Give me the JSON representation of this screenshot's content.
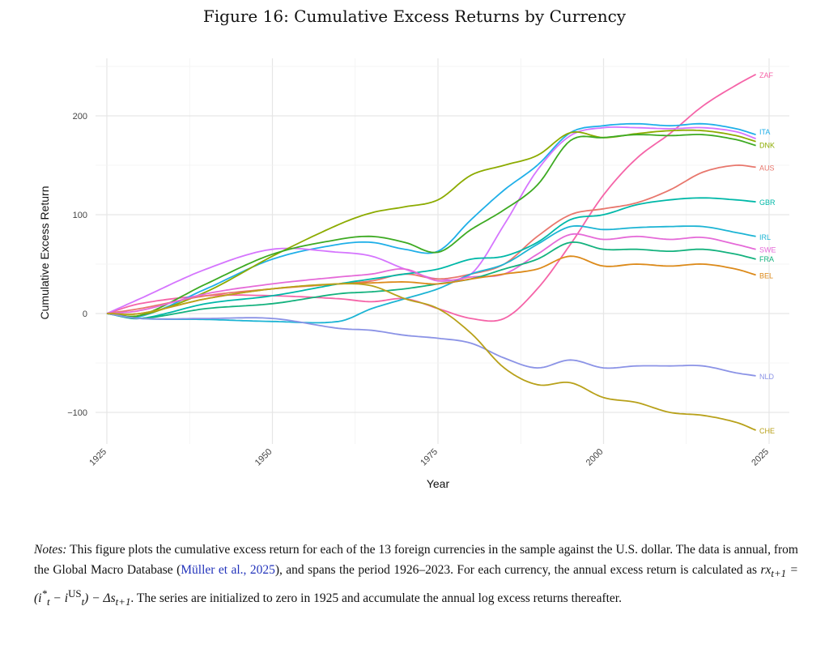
{
  "figure": {
    "title": "Figure 16: Cumulative Excess Returns by Currency"
  },
  "chart_data": {
    "type": "line",
    "xlabel": "Year",
    "ylabel": "Cumulative Excess Return",
    "xlim": [
      1925,
      2025
    ],
    "ylim": [
      -125,
      250
    ],
    "x_ticks": [
      "1925",
      "1950",
      "1975",
      "2000",
      "2025"
    ],
    "y_ticks": [
      "−100",
      "0",
      "100",
      "200"
    ],
    "grid": true,
    "legend": "direct labels at line ends (right)",
    "x": [
      1925,
      1930,
      1940,
      1950,
      1960,
      1965,
      1970,
      1975,
      1980,
      1985,
      1990,
      1995,
      2000,
      2005,
      2010,
      2015,
      2020,
      2023
    ],
    "series": [
      {
        "name": "ZAF",
        "color": "#F564A8",
        "values": [
          0,
          10,
          18,
          18,
          15,
          12,
          15,
          5,
          -5,
          -5,
          25,
          70,
          120,
          157,
          182,
          210,
          231,
          242
        ]
      },
      {
        "name": "ITA",
        "color": "#1FAFE8",
        "values": [
          0,
          -3,
          25,
          55,
          70,
          72,
          65,
          63,
          95,
          125,
          150,
          183,
          190,
          192,
          190,
          192,
          187,
          181
        ]
      },
      {
        "name": "",
        "color": "#D575FE",
        "values": [
          0,
          15,
          45,
          65,
          62,
          58,
          45,
          35,
          40,
          90,
          145,
          180,
          188,
          188,
          187,
          188,
          184,
          177
        ]
      },
      {
        "name": "DNK",
        "color": "#8CAB00",
        "values": [
          0,
          -2,
          22,
          58,
          90,
          102,
          108,
          115,
          140,
          150,
          160,
          183,
          178,
          182,
          185,
          185,
          180,
          174
        ]
      },
      {
        "name": "",
        "color": "#3DAA22",
        "values": [
          0,
          -2,
          30,
          60,
          75,
          78,
          72,
          62,
          85,
          105,
          130,
          175,
          178,
          181,
          180,
          181,
          176,
          170
        ]
      },
      {
        "name": "AUS",
        "color": "#E8776D",
        "values": [
          0,
          5,
          18,
          25,
          30,
          33,
          40,
          35,
          40,
          50,
          78,
          100,
          106,
          112,
          125,
          143,
          150,
          148
        ]
      },
      {
        "name": "GBR",
        "color": "#00B8A8",
        "values": [
          0,
          -5,
          10,
          18,
          30,
          35,
          40,
          45,
          55,
          58,
          72,
          95,
          100,
          110,
          115,
          117,
          115,
          113
        ]
      },
      {
        "name": "IRL",
        "color": "#1CB4D4",
        "values": [
          0,
          -5,
          -6,
          -8,
          -8,
          5,
          15,
          25,
          40,
          50,
          70,
          88,
          85,
          87,
          88,
          88,
          82,
          78
        ]
      },
      {
        "name": "SWE",
        "color": "#E56AD8",
        "values": [
          0,
          3,
          20,
          30,
          37,
          40,
          45,
          33,
          37,
          40,
          60,
          80,
          75,
          78,
          75,
          77,
          70,
          65
        ]
      },
      {
        "name": "FRA",
        "color": "#14B27E",
        "values": [
          0,
          -5,
          5,
          10,
          20,
          22,
          25,
          30,
          35,
          45,
          55,
          72,
          65,
          65,
          63,
          65,
          60,
          55
        ]
      },
      {
        "name": "BEL",
        "color": "#DC8A1A",
        "values": [
          0,
          0,
          15,
          25,
          30,
          31,
          32,
          30,
          35,
          40,
          45,
          58,
          48,
          50,
          48,
          50,
          45,
          39
        ]
      },
      {
        "name": "NLD",
        "color": "#8B93E6",
        "values": [
          0,
          -5,
          -5,
          -5,
          -15,
          -17,
          -22,
          -25,
          -30,
          -45,
          -55,
          -47,
          -55,
          -53,
          -53,
          -53,
          -60,
          -63
        ]
      },
      {
        "name": "CHE",
        "color": "#B8A11A",
        "values": [
          0,
          0,
          15,
          25,
          30,
          28,
          15,
          5,
          -20,
          -55,
          -72,
          -70,
          -85,
          -90,
          -100,
          -103,
          -110,
          -118
        ]
      }
    ]
  },
  "notes": {
    "label": "Notes:",
    "text1": " This figure plots the cumulative excess return for each of the 13 foreign currencies in the sample against the U.S. dollar. The data is annual, from the Global Macro Database (",
    "citation_link": "Müller et al., 2025",
    "text2": "), and spans the period 1926–2023. For each currency, the annual excess return is calculated as ",
    "formula": "rx_{t+1} = (i*_t − i^US_t) − Δs_{t+1}",
    "text3": ". The series are initialized to zero in 1925 and accumulate the annual log excess returns thereafter."
  }
}
